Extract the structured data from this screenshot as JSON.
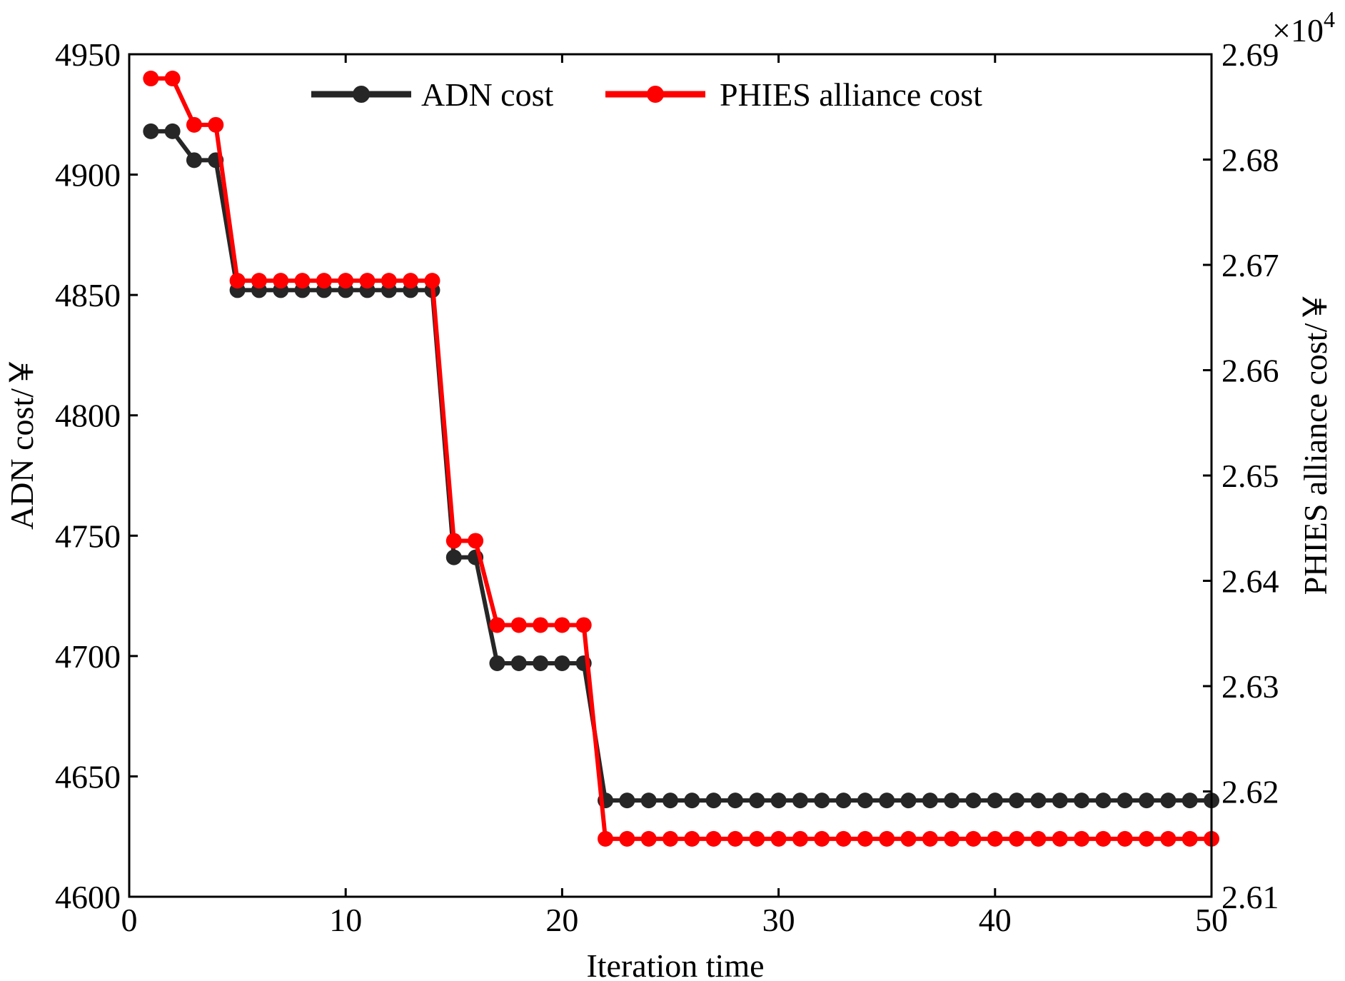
{
  "chart_data": {
    "type": "line",
    "title": "",
    "xlabel": "Iteration time",
    "ylabel_left": "ADN cost/￥",
    "ylabel_right": "PHIES alliance cost/￥",
    "right_axis_multiplier": "×10",
    "right_axis_multiplier_exp": "4",
    "xlim": [
      0,
      50
    ],
    "ylim_left": [
      4600,
      4950
    ],
    "ylim_right": [
      2.61,
      2.69
    ],
    "x_ticks": [
      0,
      10,
      20,
      30,
      40,
      50
    ],
    "y_ticks_left": [
      4600,
      4650,
      4700,
      4750,
      4800,
      4850,
      4900,
      4950
    ],
    "y_ticks_right": [
      2.61,
      2.62,
      2.63,
      2.64,
      2.65,
      2.66,
      2.67,
      2.68,
      2.69
    ],
    "legend_position": "top",
    "x": [
      1,
      2,
      3,
      4,
      5,
      6,
      7,
      8,
      9,
      10,
      11,
      12,
      13,
      14,
      15,
      16,
      17,
      18,
      19,
      20,
      21,
      22,
      23,
      24,
      25,
      26,
      27,
      28,
      29,
      30,
      31,
      32,
      33,
      34,
      35,
      36,
      37,
      38,
      39,
      40,
      41,
      42,
      43,
      44,
      45,
      46,
      47,
      48,
      49,
      50
    ],
    "series": [
      {
        "name": "ADN cost",
        "axis": "left",
        "color": "#262626",
        "values": [
          4918,
          4918,
          4906,
          4906,
          4852,
          4852,
          4852,
          4852,
          4852,
          4852,
          4852,
          4852,
          4852,
          4852,
          4741,
          4741,
          4697,
          4697,
          4697,
          4697,
          4697,
          4640,
          4640,
          4640,
          4640,
          4640,
          4640,
          4640,
          4640,
          4640,
          4640,
          4640,
          4640,
          4640,
          4640,
          4640,
          4640,
          4640,
          4640,
          4640,
          4640,
          4640,
          4640,
          4640,
          4640,
          4640,
          4640,
          4640,
          4640,
          4640
        ]
      },
      {
        "name": "PHIES alliance cost",
        "axis": "right",
        "color": "#ff0000",
        "values": [
          2.6877,
          2.6877,
          2.6833,
          2.6833,
          2.6685,
          2.6685,
          2.6685,
          2.6685,
          2.6685,
          2.6685,
          2.6685,
          2.6685,
          2.6685,
          2.6685,
          2.6438,
          2.6438,
          2.6358,
          2.6358,
          2.6358,
          2.6358,
          2.6358,
          2.6155,
          2.6155,
          2.6155,
          2.6155,
          2.6155,
          2.6155,
          2.6155,
          2.6155,
          2.6155,
          2.6155,
          2.6155,
          2.6155,
          2.6155,
          2.6155,
          2.6155,
          2.6155,
          2.6155,
          2.6155,
          2.6155,
          2.6155,
          2.6155,
          2.6155,
          2.6155,
          2.6155,
          2.6155,
          2.6155,
          2.6155,
          2.6155,
          2.6155
        ]
      }
    ]
  }
}
